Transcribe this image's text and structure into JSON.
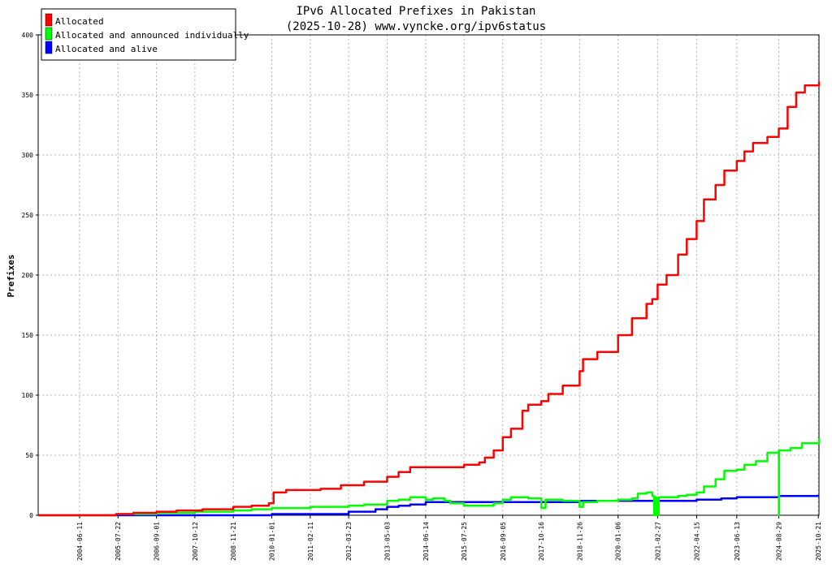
{
  "chart_data": {
    "type": "line",
    "title": "IPv6 Allocated Prefixes in Pakistan",
    "subtitle": "(2025-10-28) www.vyncke.org/ipv6status",
    "xlabel": "",
    "ylabel": "Prefixes",
    "ylim": [
      0,
      400
    ],
    "yticks": [
      0,
      50,
      100,
      150,
      200,
      250,
      300,
      350,
      400
    ],
    "xlim": [
      "2003-04-01",
      "2025-10-28"
    ],
    "xticks": [
      "2004-06-11",
      "2005-07-22",
      "2006-09-01",
      "2007-10-12",
      "2008-11-21",
      "2010-01-01",
      "2011-02-11",
      "2012-03-23",
      "2013-05-03",
      "2014-06-14",
      "2015-07-25",
      "2016-09-05",
      "2017-10-16",
      "2018-11-26",
      "2020-01-06",
      "2021-02-27",
      "2022-04-15",
      "2023-06-13",
      "2024-08-29",
      "2025-10-21"
    ],
    "grid": true,
    "legend_position": "top-left",
    "series": [
      {
        "name": "Allocated",
        "color": "#ff0000",
        "points": [
          [
            "2003-04-01",
            0
          ],
          [
            "2005-07-01",
            1
          ],
          [
            "2006-01-01",
            2
          ],
          [
            "2006-09-01",
            3
          ],
          [
            "2007-04-01",
            4
          ],
          [
            "2008-01-01",
            5
          ],
          [
            "2008-11-21",
            7
          ],
          [
            "2009-06-01",
            8
          ],
          [
            "2009-12-01",
            10
          ],
          [
            "2010-01-20",
            19
          ],
          [
            "2010-06-01",
            21
          ],
          [
            "2011-06-01",
            22
          ],
          [
            "2012-01-01",
            25
          ],
          [
            "2012-09-01",
            28
          ],
          [
            "2013-05-03",
            32
          ],
          [
            "2013-09-01",
            36
          ],
          [
            "2014-01-01",
            40
          ],
          [
            "2014-06-14",
            40
          ],
          [
            "2015-07-25",
            42
          ],
          [
            "2016-01-01",
            44
          ],
          [
            "2016-03-01",
            48
          ],
          [
            "2016-06-01",
            54
          ],
          [
            "2016-09-05",
            65
          ],
          [
            "2016-12-01",
            72
          ],
          [
            "2017-04-01",
            87
          ],
          [
            "2017-06-01",
            92
          ],
          [
            "2017-10-16",
            95
          ],
          [
            "2018-01-01",
            101
          ],
          [
            "2018-06-01",
            108
          ],
          [
            "2018-11-26",
            120
          ],
          [
            "2019-01-01",
            130
          ],
          [
            "2019-06-01",
            136
          ],
          [
            "2020-01-06",
            150
          ],
          [
            "2020-06-01",
            164
          ],
          [
            "2020-11-01",
            176
          ],
          [
            "2021-01-01",
            180
          ],
          [
            "2021-02-27",
            192
          ],
          [
            "2021-06-01",
            200
          ],
          [
            "2021-10-01",
            217
          ],
          [
            "2022-01-01",
            230
          ],
          [
            "2022-04-15",
            245
          ],
          [
            "2022-07-01",
            263
          ],
          [
            "2022-11-01",
            275
          ],
          [
            "2023-02-01",
            287
          ],
          [
            "2023-06-13",
            295
          ],
          [
            "2023-09-01",
            303
          ],
          [
            "2023-12-01",
            310
          ],
          [
            "2024-05-01",
            315
          ],
          [
            "2024-08-29",
            322
          ],
          [
            "2024-12-01",
            340
          ],
          [
            "2025-03-01",
            352
          ],
          [
            "2025-06-01",
            358
          ],
          [
            "2025-10-28",
            361
          ]
        ]
      },
      {
        "name": "Allocated and announced individually",
        "color": "#00ff00",
        "points": [
          [
            "2003-04-01",
            0
          ],
          [
            "2005-07-01",
            1
          ],
          [
            "2006-01-01",
            1
          ],
          [
            "2006-09-01",
            2
          ],
          [
            "2007-10-12",
            3
          ],
          [
            "2008-11-21",
            4
          ],
          [
            "2009-06-01",
            5
          ],
          [
            "2010-01-01",
            6
          ],
          [
            "2011-02-11",
            7
          ],
          [
            "2012-03-23",
            8
          ],
          [
            "2012-09-01",
            9
          ],
          [
            "2013-05-03",
            12
          ],
          [
            "2013-09-01",
            13
          ],
          [
            "2014-01-01",
            15
          ],
          [
            "2014-06-14",
            13
          ],
          [
            "2014-09-01",
            14
          ],
          [
            "2015-01-01",
            12
          ],
          [
            "2015-03-01",
            10
          ],
          [
            "2015-07-25",
            8
          ],
          [
            "2016-01-01",
            8
          ],
          [
            "2016-06-01",
            10
          ],
          [
            "2016-09-05",
            13
          ],
          [
            "2016-12-01",
            15
          ],
          [
            "2017-04-01",
            15
          ],
          [
            "2017-06-01",
            14
          ],
          [
            "2017-10-16",
            6
          ],
          [
            "2017-12-01",
            13
          ],
          [
            "2018-06-01",
            12
          ],
          [
            "2018-11-26",
            7
          ],
          [
            "2019-01-01",
            11
          ],
          [
            "2019-06-01",
            12
          ],
          [
            "2020-01-06",
            13
          ],
          [
            "2020-06-01",
            14
          ],
          [
            "2020-08-01",
            18
          ],
          [
            "2020-11-01",
            19
          ],
          [
            "2021-01-01",
            16
          ],
          [
            "2021-01-20",
            0
          ],
          [
            "2021-01-25",
            15
          ],
          [
            "2021-02-10",
            0
          ],
          [
            "2021-02-15",
            14
          ],
          [
            "2021-03-05",
            0
          ],
          [
            "2021-03-10",
            15
          ],
          [
            "2021-06-01",
            15
          ],
          [
            "2021-10-01",
            16
          ],
          [
            "2022-01-01",
            17
          ],
          [
            "2022-04-15",
            19
          ],
          [
            "2022-07-01",
            24
          ],
          [
            "2022-11-01",
            30
          ],
          [
            "2023-02-01",
            37
          ],
          [
            "2023-06-13",
            38
          ],
          [
            "2023-09-01",
            42
          ],
          [
            "2024-01-01",
            45
          ],
          [
            "2024-05-01",
            52
          ],
          [
            "2024-08-29",
            54
          ],
          [
            "2024-08-30",
            0
          ],
          [
            "2024-09-02",
            54
          ],
          [
            "2025-01-01",
            56
          ],
          [
            "2025-05-01",
            60
          ],
          [
            "2025-10-28",
            64
          ]
        ]
      },
      {
        "name": "Allocated and alive",
        "color": "#0000ff",
        "points": [
          [
            "2003-04-01",
            0
          ],
          [
            "2007-01-01",
            0
          ],
          [
            "2009-06-01",
            0
          ],
          [
            "2010-01-01",
            1
          ],
          [
            "2011-06-01",
            1
          ],
          [
            "2012-03-23",
            3
          ],
          [
            "2013-01-01",
            5
          ],
          [
            "2013-05-03",
            7
          ],
          [
            "2013-09-01",
            8
          ],
          [
            "2014-01-01",
            9
          ],
          [
            "2014-06-14",
            11
          ],
          [
            "2015-07-25",
            11
          ],
          [
            "2016-09-05",
            11
          ],
          [
            "2017-10-16",
            11
          ],
          [
            "2018-11-26",
            12
          ],
          [
            "2020-01-06",
            12
          ],
          [
            "2021-02-27",
            12
          ],
          [
            "2022-04-15",
            13
          ],
          [
            "2023-01-01",
            14
          ],
          [
            "2023-06-13",
            15
          ],
          [
            "2024-08-29",
            16
          ],
          [
            "2025-10-21",
            17
          ]
        ]
      }
    ]
  }
}
